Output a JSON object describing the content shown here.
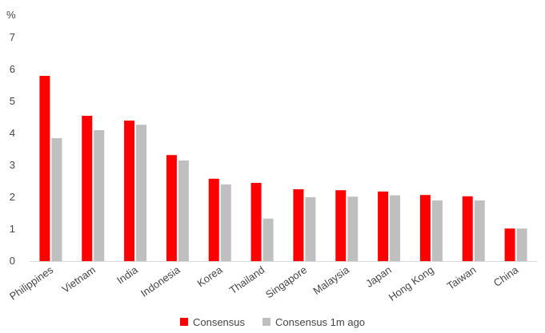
{
  "chart_data": {
    "type": "bar",
    "unit_label": "%",
    "categories": [
      "Philippines",
      "Vietnam",
      "India",
      "Indonesia",
      "Korea",
      "Thailand",
      "Singapore",
      "Malaysia",
      "Japan",
      "Hong Kong",
      "Taiwan",
      "China"
    ],
    "series": [
      {
        "name": "Consensus",
        "color": "#ff0000",
        "values": [
          5.8,
          4.55,
          4.4,
          3.32,
          2.58,
          2.45,
          2.25,
          2.22,
          2.18,
          2.07,
          2.03,
          1.02
        ]
      },
      {
        "name": "Consensus 1m ago",
        "color": "#bfbfbf",
        "values": [
          3.85,
          4.1,
          4.27,
          3.15,
          2.4,
          1.33,
          2.0,
          2.02,
          2.06,
          1.9,
          1.9,
          1.02
        ]
      }
    ],
    "yticks": [
      "0",
      "1",
      "2",
      "3",
      "4",
      "5",
      "6",
      "7"
    ],
    "ylim": [
      0,
      7
    ],
    "grid": false,
    "legend_position": "bottom"
  }
}
